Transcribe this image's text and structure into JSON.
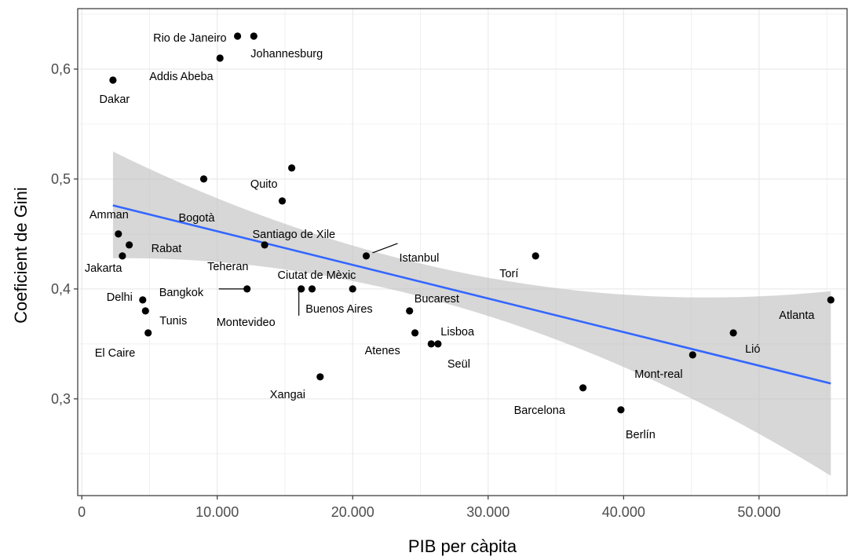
{
  "chart_data": {
    "type": "scatter",
    "title": "",
    "xlabel": "PIB per càpita",
    "ylabel": "Coeficient de Gini",
    "xlim": [
      -300,
      56500
    ],
    "ylim": [
      0.212,
      0.655
    ],
    "x_ticks": [
      0,
      10000,
      20000,
      30000,
      40000,
      50000
    ],
    "x_tick_labels": [
      "0",
      "10.000",
      "20.000",
      "30.000",
      "40.000",
      "50.000"
    ],
    "y_ticks": [
      0.3,
      0.4,
      0.5,
      0.6
    ],
    "y_tick_labels": [
      "0,3",
      "0,4",
      "0,5",
      "0,6"
    ],
    "grid": true,
    "legend": "none",
    "colors": {
      "points": "#000000",
      "fit_line": "#3366ff",
      "ribbon": "#bfbfbf",
      "grid": "#ebebeb",
      "axis": "#333333"
    },
    "points": [
      {
        "label": "Rio de Janeiro",
        "x": 11500,
        "y": 0.63
      },
      {
        "label": "Johannesburg",
        "x": 12700,
        "y": 0.63
      },
      {
        "label": "Addis Abeba",
        "x": 10200,
        "y": 0.61
      },
      {
        "label": "Dakar",
        "x": 2300,
        "y": 0.59
      },
      {
        "label": "Quito",
        "x": 15500,
        "y": 0.51
      },
      {
        "label": "Bogotà",
        "x": 9000,
        "y": 0.5
      },
      {
        "label": "Santiago de Xile",
        "x": 14800,
        "y": 0.48
      },
      {
        "label": "Amman",
        "x": 2700,
        "y": 0.45
      },
      {
        "label": "Rabat",
        "x": 3500,
        "y": 0.44
      },
      {
        "label": "Teheran",
        "x": 13500,
        "y": 0.44
      },
      {
        "label": "Jakarta",
        "x": 3000,
        "y": 0.43
      },
      {
        "label": "Istanbul",
        "x": 21000,
        "y": 0.43
      },
      {
        "label": "Torí",
        "x": 33500,
        "y": 0.43
      },
      {
        "label": "Bangkok",
        "x": 12200,
        "y": 0.4
      },
      {
        "label": "Montevideo",
        "x": 16200,
        "y": 0.4
      },
      {
        "label": "Ciutat de Mèxic",
        "x": 17000,
        "y": 0.4
      },
      {
        "label": "Buenos Aires",
        "x": 20000,
        "y": 0.4
      },
      {
        "label": "Delhi",
        "x": 4500,
        "y": 0.39
      },
      {
        "label": "Atlanta",
        "x": 55300,
        "y": 0.39
      },
      {
        "label": "Tunis",
        "x": 4700,
        "y": 0.38
      },
      {
        "label": "Bucarest",
        "x": 24200,
        "y": 0.38
      },
      {
        "label": "El Caire",
        "x": 4900,
        "y": 0.36
      },
      {
        "label": "Atenes",
        "x": 24600,
        "y": 0.36
      },
      {
        "label": "Lió",
        "x": 48100,
        "y": 0.36
      },
      {
        "label": "Lisboa",
        "x": 25800,
        "y": 0.35
      },
      {
        "label": "Seül",
        "x": 26300,
        "y": 0.35
      },
      {
        "label": "Mont-real",
        "x": 45100,
        "y": 0.34
      },
      {
        "label": "Xangai",
        "x": 17600,
        "y": 0.32
      },
      {
        "label": "Barcelona",
        "x": 37000,
        "y": 0.31
      },
      {
        "label": "Berlín",
        "x": 39800,
        "y": 0.29
      }
    ],
    "fit_line": {
      "x": [
        2300,
        55300
      ],
      "y": [
        0.476,
        0.314
      ]
    },
    "confidence_band": {
      "x": [
        2300,
        28800,
        55300
      ],
      "lower": [
        0.428,
        0.38,
        0.23
      ],
      "upper": [
        0.525,
        0.413,
        0.398
      ]
    }
  }
}
